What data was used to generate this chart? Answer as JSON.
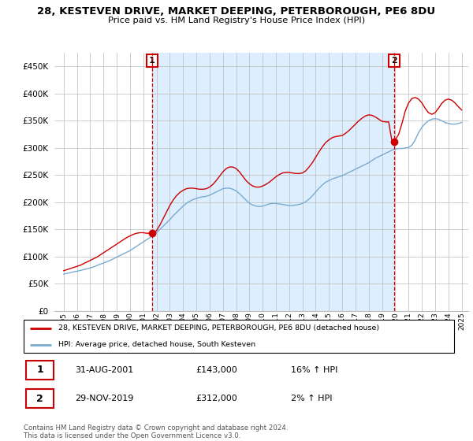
{
  "title": "28, KESTEVEN DRIVE, MARKET DEEPING, PETERBOROUGH, PE6 8DU",
  "subtitle": "Price paid vs. HM Land Registry's House Price Index (HPI)",
  "legend_line1": "28, KESTEVEN DRIVE, MARKET DEEPING, PETERBOROUGH, PE6 8DU (detached house)",
  "legend_line2": "HPI: Average price, detached house, South Kesteven",
  "transaction1_label": "1",
  "transaction1_date": "31-AUG-2001",
  "transaction1_price": "£143,000",
  "transaction1_hpi": "16% ↑ HPI",
  "transaction2_label": "2",
  "transaction2_date": "29-NOV-2019",
  "transaction2_price": "£312,000",
  "transaction2_hpi": "2% ↑ HPI",
  "footnote": "Contains HM Land Registry data © Crown copyright and database right 2024.\nThis data is licensed under the Open Government Licence v3.0.",
  "red_color": "#cc0000",
  "blue_color": "#7aabcf",
  "shade_color": "#ddeeff",
  "background_color": "#ffffff",
  "ylim": [
    0,
    475000
  ],
  "yticks": [
    0,
    50000,
    100000,
    150000,
    200000,
    250000,
    300000,
    350000,
    400000,
    450000
  ],
  "xlim_left": 1994.3,
  "xlim_right": 2025.5,
  "marker1_x": 2001.67,
  "marker1_y": 143000,
  "marker2_x": 2019.92,
  "marker2_y": 312000,
  "hpi_x": [
    1995.0,
    1995.25,
    1995.5,
    1995.75,
    1996.0,
    1996.25,
    1996.5,
    1996.75,
    1997.0,
    1997.25,
    1997.5,
    1997.75,
    1998.0,
    1998.25,
    1998.5,
    1998.75,
    1999.0,
    1999.25,
    1999.5,
    1999.75,
    2000.0,
    2000.25,
    2000.5,
    2000.75,
    2001.0,
    2001.25,
    2001.5,
    2001.75,
    2002.0,
    2002.25,
    2002.5,
    2002.75,
    2003.0,
    2003.25,
    2003.5,
    2003.75,
    2004.0,
    2004.25,
    2004.5,
    2004.75,
    2005.0,
    2005.25,
    2005.5,
    2005.75,
    2006.0,
    2006.25,
    2006.5,
    2006.75,
    2007.0,
    2007.25,
    2007.5,
    2007.75,
    2008.0,
    2008.25,
    2008.5,
    2008.75,
    2009.0,
    2009.25,
    2009.5,
    2009.75,
    2010.0,
    2010.25,
    2010.5,
    2010.75,
    2011.0,
    2011.25,
    2011.5,
    2011.75,
    2012.0,
    2012.25,
    2012.5,
    2012.75,
    2013.0,
    2013.25,
    2013.5,
    2013.75,
    2014.0,
    2014.25,
    2014.5,
    2014.75,
    2015.0,
    2015.25,
    2015.5,
    2015.75,
    2016.0,
    2016.25,
    2016.5,
    2016.75,
    2017.0,
    2017.25,
    2017.5,
    2017.75,
    2018.0,
    2018.25,
    2018.5,
    2018.75,
    2019.0,
    2019.25,
    2019.5,
    2019.75,
    2020.0,
    2020.25,
    2020.5,
    2020.75,
    2021.0,
    2021.25,
    2021.5,
    2021.75,
    2022.0,
    2022.25,
    2022.5,
    2022.75,
    2023.0,
    2023.25,
    2023.5,
    2023.75,
    2024.0,
    2024.25,
    2024.5,
    2024.75,
    2025.0
  ],
  "hpi_y": [
    68000,
    69000,
    70500,
    72000,
    73000,
    74500,
    76000,
    77500,
    79000,
    81000,
    83500,
    86000,
    88000,
    90500,
    93000,
    96000,
    99000,
    102000,
    105000,
    108000,
    111000,
    115000,
    119000,
    123000,
    127000,
    131000,
    135000,
    139000,
    144000,
    150000,
    156000,
    162000,
    168000,
    175000,
    181000,
    187000,
    193000,
    198000,
    202000,
    205000,
    207000,
    209000,
    210000,
    211000,
    213000,
    216000,
    219000,
    222000,
    225000,
    226000,
    226000,
    224000,
    221000,
    216000,
    210000,
    204000,
    198000,
    195000,
    193000,
    192000,
    193000,
    195000,
    197000,
    198000,
    198000,
    197000,
    196000,
    195000,
    194000,
    194000,
    195000,
    196000,
    198000,
    201000,
    206000,
    212000,
    219000,
    226000,
    232000,
    237000,
    240000,
    243000,
    245000,
    247000,
    249000,
    252000,
    255000,
    258000,
    261000,
    264000,
    267000,
    270000,
    273000,
    277000,
    281000,
    284000,
    287000,
    290000,
    293000,
    296000,
    298000,
    299000,
    299000,
    300000,
    301000,
    305000,
    315000,
    328000,
    338000,
    345000,
    350000,
    353000,
    354000,
    353000,
    350000,
    347000,
    345000,
    344000,
    344000,
    345000,
    347000
  ],
  "red_x": [
    1995.0,
    1995.25,
    1995.5,
    1995.75,
    1996.0,
    1996.25,
    1996.5,
    1996.75,
    1997.0,
    1997.25,
    1997.5,
    1997.75,
    1998.0,
    1998.25,
    1998.5,
    1998.75,
    1999.0,
    1999.25,
    1999.5,
    1999.75,
    2000.0,
    2000.25,
    2000.5,
    2000.75,
    2001.0,
    2001.25,
    2001.5,
    2001.75,
    2002.0,
    2002.25,
    2002.5,
    2002.75,
    2003.0,
    2003.25,
    2003.5,
    2003.75,
    2004.0,
    2004.25,
    2004.5,
    2004.75,
    2005.0,
    2005.25,
    2005.5,
    2005.75,
    2006.0,
    2006.25,
    2006.5,
    2006.75,
    2007.0,
    2007.25,
    2007.5,
    2007.75,
    2008.0,
    2008.25,
    2008.5,
    2008.75,
    2009.0,
    2009.25,
    2009.5,
    2009.75,
    2010.0,
    2010.25,
    2010.5,
    2010.75,
    2011.0,
    2011.25,
    2011.5,
    2011.75,
    2012.0,
    2012.25,
    2012.5,
    2012.75,
    2013.0,
    2013.25,
    2013.5,
    2013.75,
    2014.0,
    2014.25,
    2014.5,
    2014.75,
    2015.0,
    2015.25,
    2015.5,
    2015.75,
    2016.0,
    2016.25,
    2016.5,
    2016.75,
    2017.0,
    2017.25,
    2017.5,
    2017.75,
    2018.0,
    2018.25,
    2018.5,
    2018.75,
    2019.0,
    2019.25,
    2019.5,
    2019.75,
    2020.0,
    2020.25,
    2020.5,
    2020.75,
    2021.0,
    2021.25,
    2021.5,
    2021.75,
    2022.0,
    2022.25,
    2022.5,
    2022.75,
    2023.0,
    2023.25,
    2023.5,
    2023.75,
    2024.0,
    2024.25,
    2024.5,
    2024.75,
    2025.0
  ],
  "red_y": [
    74000,
    76000,
    78000,
    80000,
    82000,
    84000,
    87000,
    90000,
    93000,
    96000,
    99000,
    103000,
    107000,
    111000,
    115000,
    119000,
    123000,
    127000,
    131000,
    135000,
    138000,
    141000,
    143000,
    144000,
    144000,
    143000,
    143000,
    143000,
    148000,
    158000,
    170000,
    182000,
    194000,
    204000,
    212000,
    218000,
    222000,
    225000,
    226000,
    226000,
    225000,
    224000,
    224000,
    225000,
    228000,
    233000,
    240000,
    248000,
    256000,
    262000,
    265000,
    265000,
    262000,
    256000,
    248000,
    240000,
    234000,
    230000,
    228000,
    228000,
    230000,
    233000,
    237000,
    242000,
    247000,
    251000,
    254000,
    255000,
    255000,
    254000,
    253000,
    253000,
    254000,
    258000,
    265000,
    273000,
    283000,
    293000,
    302000,
    310000,
    315000,
    319000,
    321000,
    322000,
    323000,
    327000,
    332000,
    338000,
    344000,
    350000,
    355000,
    359000,
    361000,
    360000,
    357000,
    353000,
    349000,
    348000,
    348000,
    312000,
    315000,
    325000,
    345000,
    368000,
    383000,
    391000,
    393000,
    390000,
    383000,
    373000,
    365000,
    362000,
    365000,
    373000,
    382000,
    388000,
    390000,
    388000,
    383000,
    376000,
    370000
  ]
}
